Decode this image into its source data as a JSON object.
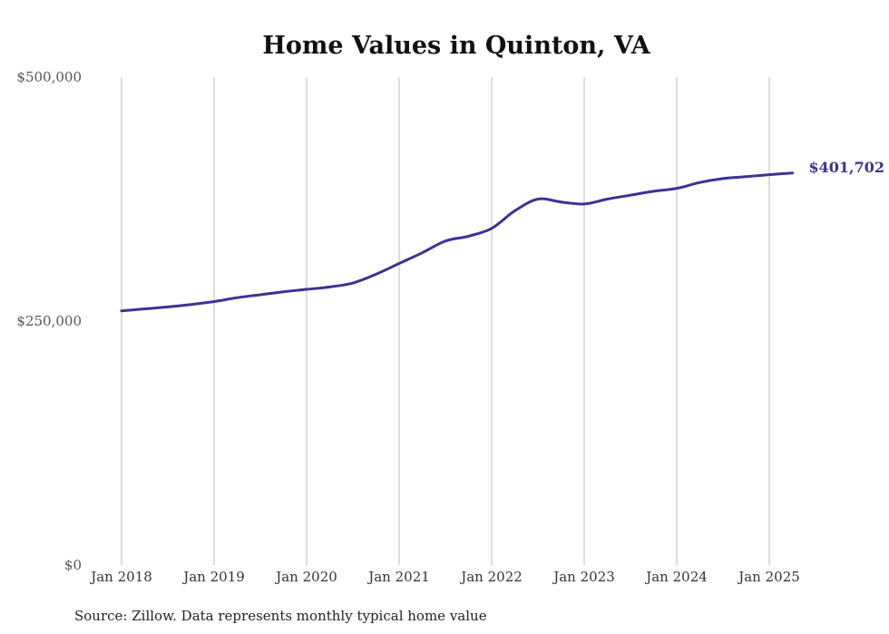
{
  "chart_data": {
    "type": "line",
    "title": "Home Values in Quinton, VA",
    "source": "Source: Zillow. Data represents monthly typical home value",
    "ylim": [
      0,
      500000
    ],
    "y_ticks": [
      {
        "value": 0,
        "label": "$0"
      },
      {
        "value": 250000,
        "label": "$250,000"
      },
      {
        "value": 500000,
        "label": "$500,000"
      }
    ],
    "x_ticks": [
      {
        "value": 2018.0,
        "label": "Jan 2018"
      },
      {
        "value": 2019.0,
        "label": "Jan 2019"
      },
      {
        "value": 2020.0,
        "label": "Jan 2020"
      },
      {
        "value": 2021.0,
        "label": "Jan 2021"
      },
      {
        "value": 2022.0,
        "label": "Jan 2022"
      },
      {
        "value": 2023.0,
        "label": "Jan 2023"
      },
      {
        "value": 2024.0,
        "label": "Jan 2024"
      },
      {
        "value": 2025.0,
        "label": "Jan 2025"
      }
    ],
    "xlim": [
      2018.0,
      2025.25
    ],
    "grid": "vertical",
    "series": [
      {
        "color": "#3a3393",
        "end_label": "$401,702",
        "points": [
          [
            2018.0,
            260500
          ],
          [
            2018.25,
            262500
          ],
          [
            2018.5,
            264500
          ],
          [
            2018.75,
            267000
          ],
          [
            2019.0,
            270000
          ],
          [
            2019.25,
            274000
          ],
          [
            2019.5,
            277000
          ],
          [
            2019.75,
            280000
          ],
          [
            2020.0,
            282500
          ],
          [
            2020.25,
            285000
          ],
          [
            2020.5,
            289000
          ],
          [
            2020.75,
            298000
          ],
          [
            2021.0,
            309000
          ],
          [
            2021.25,
            320000
          ],
          [
            2021.5,
            332000
          ],
          [
            2021.75,
            337000
          ],
          [
            2022.0,
            345000
          ],
          [
            2022.25,
            363000
          ],
          [
            2022.5,
            375000
          ],
          [
            2022.75,
            372000
          ],
          [
            2023.0,
            370000
          ],
          [
            2023.25,
            375000
          ],
          [
            2023.5,
            379000
          ],
          [
            2023.75,
            383000
          ],
          [
            2024.0,
            386000
          ],
          [
            2024.25,
            392000
          ],
          [
            2024.5,
            396000
          ],
          [
            2024.75,
            398000
          ],
          [
            2025.0,
            400000
          ],
          [
            2025.25,
            401702
          ]
        ]
      }
    ]
  }
}
